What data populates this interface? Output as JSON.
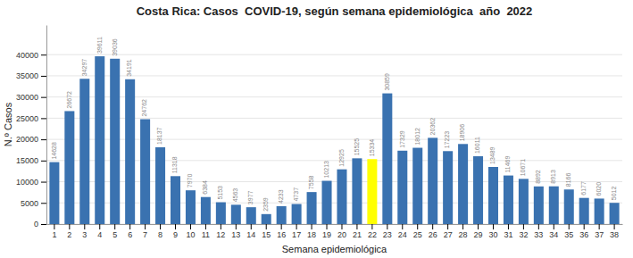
{
  "chart_data": {
    "type": "bar",
    "title": "Costa Rica: Casos  COVID-19, según semana epidemiológica  año  2022",
    "xlabel": "Semana epidemiológica",
    "ylabel": "N.º Casos",
    "categories": [
      1,
      2,
      3,
      4,
      5,
      6,
      7,
      8,
      9,
      10,
      11,
      12,
      13,
      14,
      15,
      16,
      17,
      18,
      19,
      20,
      21,
      22,
      23,
      24,
      25,
      26,
      27,
      28,
      29,
      30,
      31,
      32,
      33,
      34,
      35,
      36,
      37,
      38
    ],
    "values": [
      14628,
      26672,
      34297,
      39611,
      39036,
      34191,
      24762,
      18137,
      11318,
      7970,
      6384,
      5153,
      4563,
      3977,
      2359,
      4233,
      4737,
      7558,
      10213,
      12925,
      15525,
      15334,
      30859,
      17329,
      18012,
      20362,
      17223,
      18906,
      16011,
      13489,
      11469,
      10671,
      8892,
      8913,
      8166,
      6177,
      6020,
      5012
    ],
    "colors": [
      "#3A72B0",
      "#3A72B0",
      "#3A72B0",
      "#3A72B0",
      "#3A72B0",
      "#3A72B0",
      "#3A72B0",
      "#3A72B0",
      "#3A72B0",
      "#3A72B0",
      "#3A72B0",
      "#3A72B0",
      "#3A72B0",
      "#3A72B0",
      "#3A72B0",
      "#3A72B0",
      "#3A72B0",
      "#3A72B0",
      "#3A72B0",
      "#3A72B0",
      "#3A72B0",
      "#FFFF00",
      "#3A72B0",
      "#3A72B0",
      "#3A72B0",
      "#3A72B0",
      "#3A72B0",
      "#3A72B0",
      "#3A72B0",
      "#3A72B0",
      "#3A72B0",
      "#3A72B0",
      "#3A72B0",
      "#3A72B0",
      "#3A72B0",
      "#3A72B0",
      "#3A72B0",
      "#3A72B0"
    ],
    "ylim": [
      0,
      47000
    ],
    "yticks": [
      0,
      5000,
      10000,
      15000,
      20000,
      25000,
      30000,
      35000,
      40000
    ],
    "grid": true,
    "data_labels": true
  }
}
